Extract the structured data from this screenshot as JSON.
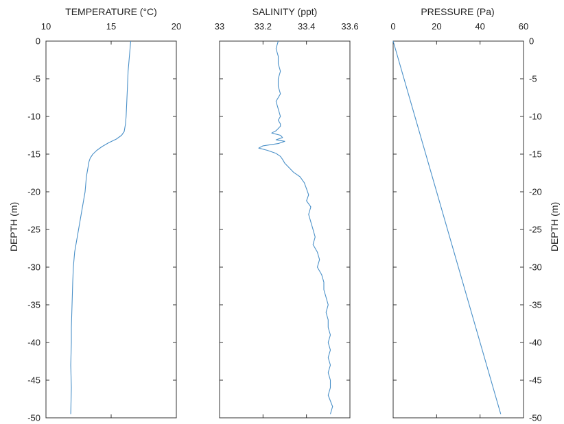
{
  "chart_data": [
    {
      "type": "line",
      "title": "TEMPERATURE (°C)",
      "xlabel": "TEMPERATURE (°C)",
      "ylabel": "DEPTH (m)",
      "xlim": [
        10,
        20
      ],
      "ylim": [
        -50,
        0
      ],
      "x_ticks": [
        "10",
        "15",
        "20"
      ],
      "y_ticks": [
        "0",
        "-5",
        "-10",
        "-15",
        "-20",
        "-25",
        "-30",
        "-35",
        "-40",
        "-45",
        "-50"
      ],
      "x_tick_values": [
        10,
        15,
        20
      ],
      "y_axis_side": "left",
      "grid": false,
      "series": [
        {
          "x": [
            16.5,
            16.4,
            16.3,
            16.25,
            16.2,
            16.15,
            16.1,
            16.0,
            15.8,
            15.4,
            14.8,
            14.3,
            13.9,
            13.6,
            13.4,
            13.3,
            13.2,
            13.1,
            13.0,
            12.8,
            12.6,
            12.4,
            12.2,
            12.1,
            12.05,
            12.0,
            11.95,
            11.95,
            11.9,
            11.95,
            11.9
          ],
          "y": [
            0,
            -2,
            -4,
            -6,
            -8,
            -10,
            -11,
            -12,
            -12.5,
            -13,
            -13.5,
            -14,
            -14.5,
            -15,
            -15.5,
            -16,
            -17,
            -18,
            -20,
            -22,
            -24,
            -26,
            -28,
            -30,
            -32,
            -35,
            -38,
            -40,
            -43,
            -46,
            -49.5
          ]
        }
      ]
    },
    {
      "type": "line",
      "title": "SALINITY (ppt)",
      "xlabel": "SALINITY (ppt)",
      "ylabel": "",
      "xlim": [
        33,
        33.6
      ],
      "ylim": [
        -50,
        0
      ],
      "x_ticks": [
        "33",
        "33.2",
        "33.4",
        "33.6"
      ],
      "y_ticks": [],
      "x_tick_values": [
        33,
        33.2,
        33.4,
        33.6
      ],
      "y_axis_side": "none",
      "grid": false,
      "series": [
        {
          "x": [
            33.27,
            33.26,
            33.27,
            33.27,
            33.28,
            33.27,
            33.27,
            33.28,
            33.26,
            33.27,
            33.28,
            33.27,
            33.28,
            33.28,
            33.27,
            33.26,
            33.24,
            33.28,
            33.29,
            33.26,
            33.3,
            33.27,
            33.2,
            33.18,
            33.22,
            33.26,
            33.28,
            33.29,
            33.3,
            33.32,
            33.34,
            33.37,
            33.39,
            33.4,
            33.41,
            33.4,
            33.42,
            33.41,
            33.42,
            33.43,
            33.44,
            33.43,
            33.45,
            33.46,
            33.45,
            33.47,
            33.48,
            33.48,
            33.49,
            33.5,
            33.49,
            33.5,
            33.5,
            33.51,
            33.5,
            33.51,
            33.5,
            33.51,
            33.5,
            33.51,
            33.51,
            33.5,
            33.52,
            33.51
          ],
          "y": [
            0,
            -1,
            -2,
            -3,
            -4,
            -5,
            -6,
            -7,
            -8,
            -9,
            -10,
            -10.5,
            -11,
            -11.3,
            -11.6,
            -11.9,
            -12.2,
            -12.5,
            -12.8,
            -13.1,
            -13.3,
            -13.6,
            -13.9,
            -14.2,
            -14.5,
            -14.9,
            -15.3,
            -15.7,
            -16.2,
            -16.8,
            -17.4,
            -18.0,
            -18.8,
            -19.6,
            -20.4,
            -21.2,
            -22,
            -23,
            -24,
            -25,
            -26,
            -27,
            -28,
            -29,
            -30,
            -31,
            -32,
            -33,
            -34,
            -35,
            -36,
            -37,
            -38,
            -39,
            -40,
            -41,
            -42,
            -43,
            -44,
            -45,
            -46,
            -47,
            -48.5,
            -49.5
          ]
        }
      ]
    },
    {
      "type": "line",
      "title": "PRESSURE (Pa)",
      "xlabel": "PRESSURE (Pa)",
      "ylabel": "DEPTH (m)",
      "xlim": [
        0,
        60
      ],
      "ylim": [
        -50,
        0
      ],
      "x_ticks": [
        "0",
        "20",
        "40",
        "60"
      ],
      "y_ticks": [
        "0",
        "-5",
        "-10",
        "-15",
        "-20",
        "-25",
        "-30",
        "-35",
        "-40",
        "-45",
        "-50"
      ],
      "x_tick_values": [
        0,
        20,
        40,
        60
      ],
      "y_axis_side": "right",
      "grid": false,
      "series": [
        {
          "x": [
            0,
            49.5
          ],
          "y": [
            0,
            -49.5
          ]
        }
      ]
    }
  ],
  "colors": {
    "series_line": "#4a90c8",
    "axes": "#333333"
  }
}
